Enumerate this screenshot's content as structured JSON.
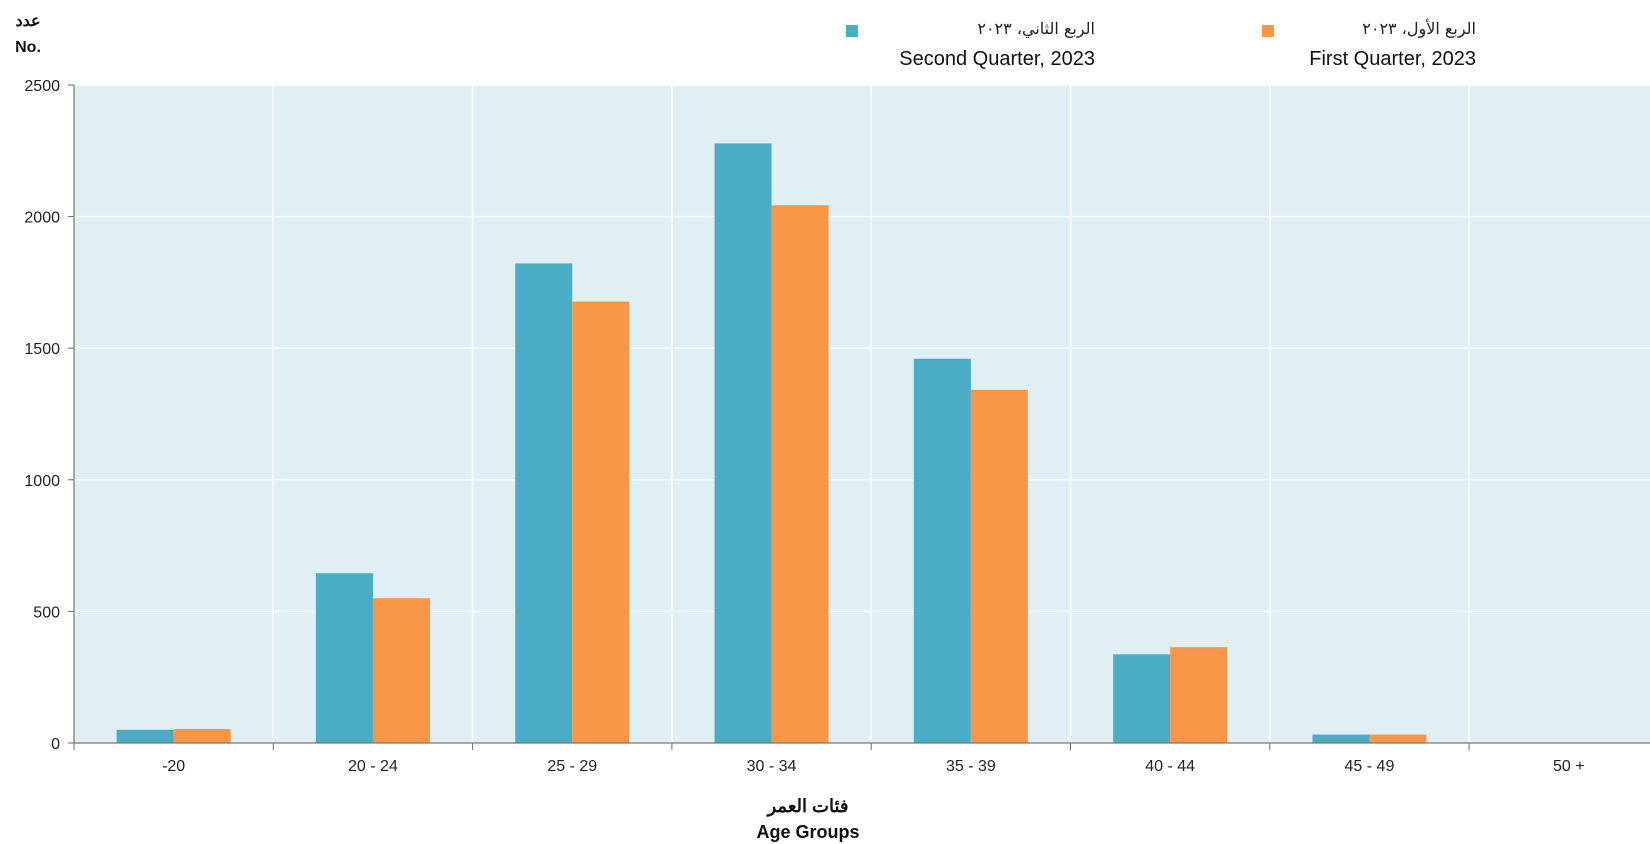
{
  "chart_data": {
    "type": "bar",
    "ylabel_ar": "عدد",
    "ylabel_en": "No.",
    "xlabel_ar": "فئات العمر",
    "xlabel_en": "Age Groups",
    "categories": [
      "-20",
      "20 - 24",
      "25 - 29",
      "30 - 34",
      "35 - 39",
      "40 - 44",
      "45 - 49",
      "50 +"
    ],
    "ylim": [
      0,
      2500
    ],
    "yticks": [
      "0",
      "500",
      "1000",
      "1500",
      "2000",
      "2500"
    ],
    "grid": true,
    "legend_position": "top-right",
    "series": [
      {
        "name_ar": "الربع الثاني، ٢٠٢٣",
        "name_en": "Second Quarter, 2023",
        "color": "#4BACC6",
        "values": [
          50,
          645,
          1822,
          2278,
          1460,
          337,
          32,
          0
        ]
      },
      {
        "name_ar": "الربع الأول، ٢٠٢٣",
        "name_en": "First Quarter, 2023",
        "color": "#F79646",
        "values": [
          53,
          550,
          1677,
          2043,
          1342,
          364,
          32,
          0
        ]
      }
    ],
    "plot_background": "#DFEFF4",
    "grid_color": "#FFFFFF"
  }
}
